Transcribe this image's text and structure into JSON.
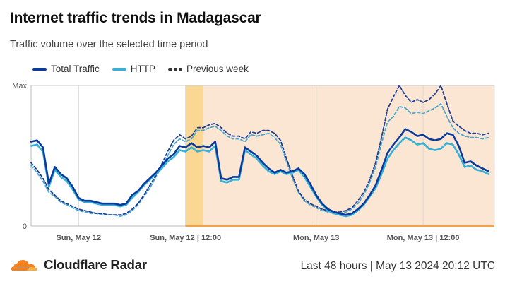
{
  "header": {
    "title": "Internet traffic trends in Madagascar",
    "subtitle": "Traffic volume over the selected time period"
  },
  "legend": {
    "total": "Total Traffic",
    "http": "HTTP",
    "previous": "Previous week"
  },
  "footer": {
    "brand": "Cloudflare Radar",
    "period": "Last 48 hours | May 13 2024 20:12 UTC"
  },
  "colors": {
    "total": "#0a3b9c",
    "http": "#35b1d7",
    "previous_total": "#1d3f95",
    "previous_http": "#4aa7cd",
    "highlight": "#fbe6d4",
    "highlight_band": "#f9d588",
    "highlight_line": "#f4a24a",
    "brand_orange": "#f48120"
  },
  "chart_data": {
    "type": "line",
    "y_tick_labels": [
      "Max",
      "0"
    ],
    "ylim": [
      0,
      1
    ],
    "xlim": [
      0,
      78
    ],
    "x_ticks": [
      {
        "x": 8,
        "label": "Sun, May 12"
      },
      {
        "x": 26,
        "label": "Sun, May 12 | 12:00"
      },
      {
        "x": 48,
        "label": "Mon, May 13"
      },
      {
        "x": 66,
        "label": "Mon, May 13 | 12:00"
      }
    ],
    "shaded_ranges": [
      {
        "from": 26,
        "to": 78,
        "kind": "highlight"
      },
      {
        "from": 26,
        "to": 29,
        "kind": "band"
      }
    ],
    "grid": true,
    "series": [
      {
        "name": "Total Traffic",
        "key": "total",
        "style": "solid",
        "values": [
          0.6,
          0.61,
          0.56,
          0.3,
          0.42,
          0.37,
          0.34,
          0.28,
          0.2,
          0.18,
          0.18,
          0.17,
          0.16,
          0.16,
          0.16,
          0.15,
          0.16,
          0.22,
          0.25,
          0.3,
          0.34,
          0.38,
          0.43,
          0.48,
          0.51,
          0.57,
          0.56,
          0.59,
          0.56,
          0.57,
          0.56,
          0.6,
          0.34,
          0.33,
          0.35,
          0.35,
          0.56,
          0.53,
          0.5,
          0.45,
          0.41,
          0.38,
          0.4,
          0.38,
          0.39,
          0.41,
          0.37,
          0.3,
          0.22,
          0.16,
          0.12,
          0.1,
          0.09,
          0.08,
          0.09,
          0.12,
          0.16,
          0.22,
          0.29,
          0.4,
          0.52,
          0.58,
          0.63,
          0.69,
          0.67,
          0.64,
          0.65,
          0.62,
          0.61,
          0.62,
          0.66,
          0.65,
          0.57,
          0.45,
          0.46,
          0.43,
          0.41,
          0.39
        ]
      },
      {
        "name": "HTTP",
        "key": "http",
        "style": "solid",
        "values": [
          0.57,
          0.58,
          0.53,
          0.28,
          0.4,
          0.35,
          0.32,
          0.26,
          0.19,
          0.17,
          0.17,
          0.16,
          0.15,
          0.15,
          0.15,
          0.14,
          0.15,
          0.2,
          0.24,
          0.29,
          0.33,
          0.37,
          0.41,
          0.46,
          0.49,
          0.54,
          0.53,
          0.56,
          0.53,
          0.54,
          0.53,
          0.57,
          0.32,
          0.31,
          0.33,
          0.33,
          0.54,
          0.51,
          0.48,
          0.43,
          0.39,
          0.37,
          0.39,
          0.37,
          0.38,
          0.4,
          0.35,
          0.28,
          0.21,
          0.15,
          0.11,
          0.09,
          0.08,
          0.07,
          0.08,
          0.11,
          0.15,
          0.21,
          0.27,
          0.37,
          0.48,
          0.54,
          0.59,
          0.63,
          0.61,
          0.58,
          0.59,
          0.55,
          0.54,
          0.55,
          0.59,
          0.58,
          0.51,
          0.42,
          0.43,
          0.4,
          0.39,
          0.37
        ]
      },
      {
        "name": "Previous week",
        "key": "prev_total",
        "style": "dashed",
        "values": [
          0.45,
          0.4,
          0.34,
          0.26,
          0.22,
          0.18,
          0.16,
          0.14,
          0.12,
          0.11,
          0.1,
          0.09,
          0.09,
          0.08,
          0.08,
          0.08,
          0.09,
          0.12,
          0.16,
          0.22,
          0.29,
          0.36,
          0.44,
          0.53,
          0.61,
          0.65,
          0.62,
          0.64,
          0.7,
          0.7,
          0.72,
          0.73,
          0.7,
          0.66,
          0.64,
          0.64,
          0.62,
          0.67,
          0.66,
          0.68,
          0.68,
          0.66,
          0.61,
          0.48,
          0.36,
          0.25,
          0.19,
          0.16,
          0.14,
          0.12,
          0.11,
          0.1,
          0.1,
          0.11,
          0.13,
          0.18,
          0.24,
          0.33,
          0.45,
          0.63,
          0.83,
          0.92,
          1.0,
          0.93,
          0.88,
          0.9,
          0.88,
          0.9,
          0.94,
          1.0,
          0.87,
          0.75,
          0.71,
          0.68,
          0.66,
          0.66,
          0.65,
          0.66
        ]
      },
      {
        "name": "Previous week",
        "key": "prev_http",
        "style": "dashed",
        "values": [
          0.43,
          0.38,
          0.32,
          0.24,
          0.21,
          0.17,
          0.15,
          0.13,
          0.11,
          0.1,
          0.09,
          0.09,
          0.08,
          0.08,
          0.08,
          0.07,
          0.08,
          0.11,
          0.15,
          0.21,
          0.27,
          0.35,
          0.42,
          0.5,
          0.58,
          0.62,
          0.6,
          0.62,
          0.68,
          0.68,
          0.7,
          0.71,
          0.68,
          0.64,
          0.62,
          0.62,
          0.6,
          0.65,
          0.64,
          0.65,
          0.66,
          0.63,
          0.58,
          0.46,
          0.34,
          0.24,
          0.18,
          0.15,
          0.13,
          0.11,
          0.1,
          0.09,
          0.09,
          0.1,
          0.12,
          0.16,
          0.22,
          0.31,
          0.42,
          0.59,
          0.74,
          0.78,
          0.85,
          0.84,
          0.8,
          0.81,
          0.8,
          0.82,
          0.84,
          0.87,
          0.78,
          0.7,
          0.66,
          0.64,
          0.63,
          0.63,
          0.62,
          0.63
        ]
      }
    ]
  }
}
